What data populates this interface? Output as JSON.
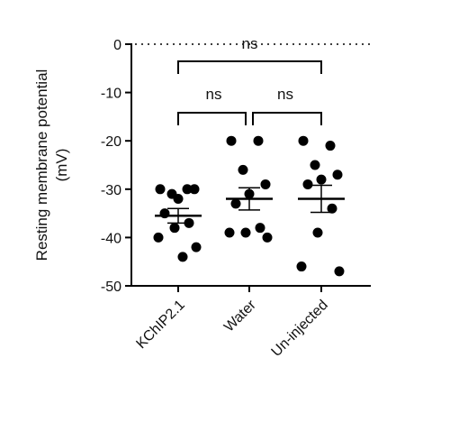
{
  "chart_data": {
    "type": "dot",
    "ylabel": [
      "Resting membrane potential",
      "(mV)"
    ],
    "categories": [
      "KChIP2.1",
      "Water",
      "Un-injected"
    ],
    "points": [
      [
        -30,
        -30,
        -31,
        -30,
        -32,
        -35,
        -37,
        -38,
        -40,
        -42,
        -44
      ],
      [
        -20,
        -20,
        -26,
        -29,
        -31,
        -33,
        -38,
        -39,
        -39,
        -40
      ],
      [
        -20,
        -21,
        -25,
        -27,
        -28,
        -29,
        -34,
        -39,
        -46,
        -47
      ]
    ],
    "means": [
      -35.5,
      -32,
      -32
    ],
    "sems": [
      1.5,
      2.3,
      2.8
    ],
    "color": "#000000",
    "ylim": [
      -50,
      0
    ],
    "yticks": [
      0,
      -10,
      -20,
      -30,
      -40,
      -50
    ],
    "annotations": [
      "ns",
      "ns",
      "ns"
    ]
  }
}
